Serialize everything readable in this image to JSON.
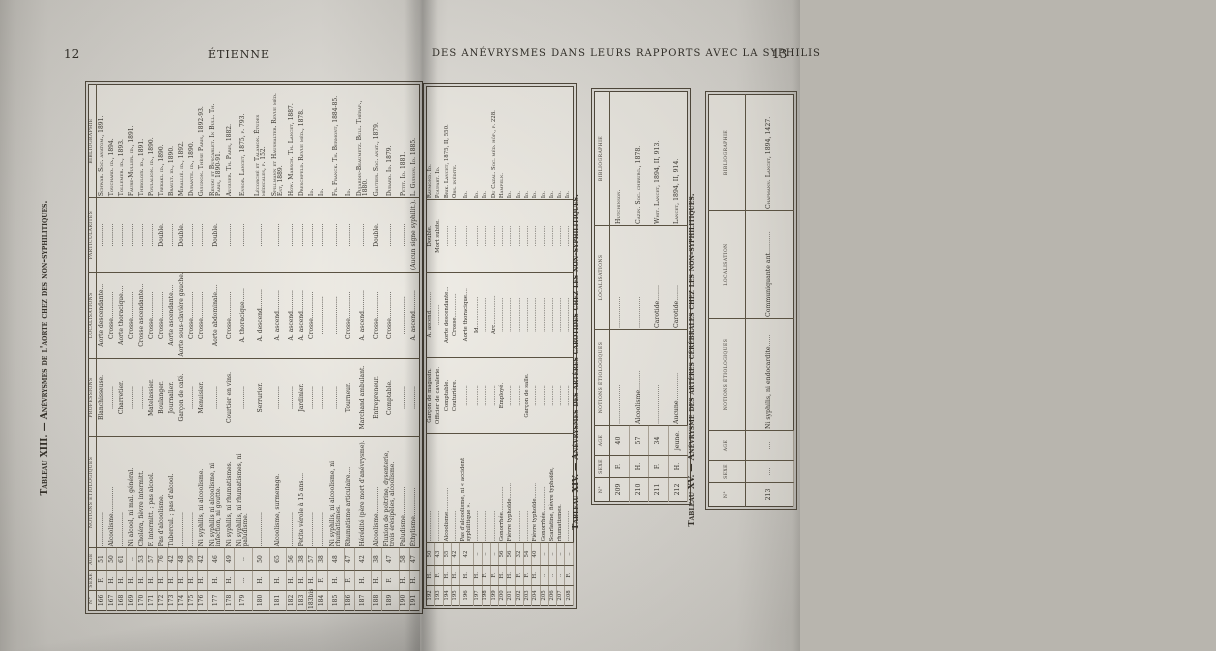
{
  "page_left": {
    "page_number": "12",
    "running_title": "ÉTIENNE"
  },
  "page_right": {
    "page_number": "13",
    "running_title": "DES ANÉVRYSMES DANS LEURS RAPPORTS AVEC LA SYPHILIS"
  },
  "table13": {
    "title": "Tableau XIII. — Anévrysmes de l'aorte chez des non-syphilitiques.",
    "headers": [
      "N°",
      "SEXE",
      "AGE",
      "NOTIONS ÉTIOLOGIQUES",
      "PROFESSIONS",
      "LOCALISATIONS",
      "PARTICULARITÉS",
      "BIBLIOGRAPHIE"
    ],
    "rows": [
      [
        "166",
        "F.",
        "51",
        "..................",
        "Blanchisseuse.",
        "Aorte descendante...",
        "............",
        "Schwab. Soc. anatom., 1891."
      ],
      [
        "167",
        "H.",
        "50",
        "Alcoolisme..............",
        "............",
        "Crosse..............",
        "............",
        "Touchard. id., 1894."
      ],
      [
        "168",
        "H.",
        "61",
        "..................",
        "Charretier.",
        "Aorte thoracique....",
        "............",
        "Tollemer. id., 1893."
      ],
      [
        "169",
        "H.",
        "..",
        "Ni alcool, ni mal. général.",
        "............",
        "Crosse..............",
        "............",
        "Faure-Muller. id., 1891."
      ],
      [
        "170",
        "H.",
        "53",
        "Choléra, fièvre intermitt.",
        "............",
        "Crosse ascendante...",
        "............",
        "Thiboloix. id., 1891."
      ],
      [
        "171",
        "H.",
        "57",
        "F. intermitt. ; pas alcool.",
        "Matelassier.",
        "Crosse..............",
        "............",
        "Poulalion. id., 1890."
      ],
      [
        "172",
        "H.",
        "76",
        "Pas d'alcoolisme.",
        "Boulanger.",
        "Crosse..............",
        "Double.",
        "Trekaki. id., 1890."
      ],
      [
        "173",
        "H.",
        "42",
        "Tubercul. ; pas d'alcool.",
        "Journalier.",
        "Aorte ascendante....",
        "............",
        "Brault. id., 1890."
      ],
      [
        "174",
        "H.",
        "48",
        "..................",
        "Garçon de café.",
        "Aorte sous-clavière gauche.",
        "Double.",
        "Mirallié. id., 1892."
      ],
      [
        "175",
        "H.",
        "59",
        "..................",
        "............",
        "Crosse..............",
        "............",
        "Durante. id., 1890."
      ],
      [
        "176",
        "H.",
        "42",
        "Ni syphilis, ni alcoolisme.",
        "Menuisier.",
        "Crosse..............",
        "............",
        "Guignon. Thèse Paris, 1892-93."
      ],
      [
        "177",
        "H.",
        "46",
        "Ni syphilis ni alcoolisme, ni infection, ni goutte.",
        "............",
        "Aorte abdominale....",
        "Double.",
        "Rendu et Buscarlet. In Bull. Th. Paris, 1890-91."
      ],
      [
        "178",
        "H.",
        "49",
        "Ni syphilis, ni rhumatismes.",
        "Courtier en vins.",
        "Crosse..............",
        "............",
        "Auguier. Th. Paris, 1882."
      ],
      [
        "179",
        "...",
        "..",
        "Ni syphilis, ni rhumatismes, ni paludisme.",
        "............",
        "A. thoracique.......",
        "............",
        "Ensor. Lancet, 1875, p. 793."
      ],
      [
        "180",
        "H.",
        "50",
        "..................",
        "Serrurier.",
        "A. descend..........",
        "............",
        "Lécorché et Talamon. Études médicales, p. 152."
      ],
      [
        "181",
        "H.",
        "65",
        "Alcoolisme, surmenage.",
        "............",
        "A. ascend...........",
        "............",
        "Spillmann et Haushalter. Revue méd. Est, 1889."
      ],
      [
        "182",
        "H.",
        "56",
        "..................",
        "............",
        "A. ascend...........",
        "............",
        "How. Marsch. Th. Lancet, 1887."
      ],
      [
        "183",
        "H.",
        "38",
        "Petite vérole à 15 ans....",
        "Jardinier.",
        "A. ascend...........",
        "............",
        "Dreschfeld. Revue méd., 1878."
      ],
      [
        "183bis",
        "H.",
        "57",
        "..................",
        "............",
        "Crosse..............",
        "............",
        "Id."
      ],
      [
        "184",
        "F.",
        "38",
        "..................",
        "............",
        "....................",
        "............",
        "Id."
      ],
      [
        "185",
        "H.",
        "48",
        "Ni syphilis, ni alcoolisme, ni rhumatismes.",
        "............",
        "....................",
        "............",
        "Fr. Franck. Th. Bermont, 1884-85."
      ],
      [
        "186",
        "F.",
        "47",
        "Rhumatisme articulaire....",
        "Tourneur.",
        "Crosse..............",
        "............",
        "Id."
      ],
      [
        "187",
        "H.",
        "42",
        "Hérédité (père mort d'anévrysme).",
        "Marchand ambulant.",
        "A. ascend...........",
        "............",
        "Dujardin-Beaumetz. Bull. Thérap., 1880."
      ],
      [
        "188",
        "H.",
        "38",
        "Alcoolisme..............",
        "Entrepreneur.",
        "Crosse..............",
        "Double.",
        "Gautier. Soc. anat., 1879."
      ],
      [
        "189",
        "F.",
        "47",
        "Fluxion de poitrine, dysenterie, trois érésipèles, alcoolisme.",
        "Comptable.",
        "Crosse..............",
        "............",
        "Dubard. Id. 1879."
      ],
      [
        "190",
        "H.",
        "58",
        "Paludisme...............",
        "............",
        "....................",
        "............",
        "Petit. Id. 1881."
      ],
      [
        "191",
        "H.",
        "47",
        "Éthylisme...............",
        "............",
        "A. ascend...........",
        "(Aucun signe syphilit.).",
        "L. Guinon. Id. 1885."
      ]
    ],
    "rows_continued": [
      [
        "192",
        "H.",
        "50",
        "..................",
        "Garçon de magasin.",
        "A. ascend...........",
        "Double.",
        "Raymond. Id."
      ],
      [
        "193",
        "F.",
        "43",
        "..................",
        "Officier de cavalerie.",
        "............",
        "Mort subite.",
        "Poupart. Id."
      ],
      [
        "194",
        "H.",
        "55",
        "Alcoolisme..............",
        "Comptable.",
        "Aorte descendante...",
        "............",
        "Brik. Lancet, 1875, II, 550."
      ],
      [
        "195",
        "H.",
        "42",
        "..................",
        "Couturière.",
        "Crosse..............",
        "............",
        "Obs. inédite."
      ],
      [
        "196",
        "H.",
        "42",
        "Pas d'alcoolisme, ni « accident syphilitique ».",
        "............",
        "Aorte thoracique....",
        "............",
        "Id."
      ],
      [
        "197",
        "H.",
        "..",
        "..................",
        "............",
        "Id..................",
        "............",
        "Id."
      ],
      [
        "198",
        "F.",
        "..",
        "..................",
        "............",
        "....................",
        "............",
        "Id."
      ],
      [
        "199",
        "F.",
        "..",
        "..................",
        "............",
        "Arc.................",
        "............",
        "Du Cazal. Soc. méd. hôp., p. 228."
      ],
      [
        "200",
        "H.",
        "56",
        "Gonorrhée...............",
        "Employé.",
        "....................",
        "............",
        "Hampeln."
      ],
      [
        "201",
        "H.",
        "56",
        "Fièvre typhoïde.........",
        "............",
        "....................",
        "............",
        "Id."
      ],
      [
        "202",
        "F.",
        "32",
        "..................",
        "............",
        "....................",
        "............",
        "Id."
      ],
      [
        "203",
        "F.",
        "54",
        "..................",
        "Garçon de salle.",
        "....................",
        "............",
        "Id."
      ],
      [
        "204",
        "H.",
        "40",
        "Fièvre typhoïde.........",
        "............",
        "....................",
        "............",
        "Id."
      ],
      [
        "205",
        "..",
        "..",
        "Gonorrhée...............",
        "............",
        "....................",
        "............",
        "Id."
      ],
      [
        "206",
        "..",
        "..",
        "Scarlatine, fièvre typhoïde,",
        "............",
        "....................",
        "............",
        "Id."
      ],
      [
        "207",
        "..",
        "..",
        "rhumatismes.",
        "............",
        "....................",
        "............",
        "Id."
      ],
      [
        "208",
        "F.",
        "..",
        "..................",
        "............",
        "....................",
        "............",
        "Id."
      ]
    ]
  },
  "table14": {
    "title": "Tableau XIV. — Anévrysmes des artères carotides chez les non-syphilitiques.",
    "headers": [
      "N°",
      "SEXE",
      "AGE",
      "NOTIONS ÉTIOLOGIQUES",
      "LOCALISATIONS",
      "BIBLIOGRAPHIE"
    ],
    "rows": [
      [
        "209",
        "F.",
        "40",
        "....................",
        "................",
        "Hutchinson."
      ],
      [
        "210",
        "H.",
        "57",
        "Alcoolisme..........",
        "................",
        "Cazin. Soc. chirurg., 1878."
      ],
      [
        "211",
        "F.",
        "34",
        "....................",
        "Carotide........",
        "Whit. Lancet, 1894, II, 913."
      ],
      [
        "212",
        "H.",
        "jeune.",
        "Aucune..............",
        "Carotide........",
        "Lancet, 1894, II, 914."
      ]
    ]
  },
  "table15": {
    "title": "Tableau XV. — Anévrysme des artères cérébrales chez les non-syphilitiques.",
    "headers": [
      "N°",
      "SEXE",
      "AGE",
      "NOTIONS ÉTIOLOGIQUES",
      "LOCALISATION",
      "BIBLIOGRAPHIE"
    ],
    "rows": [
      [
        "213",
        "....",
        "....",
        "Ni syphilis, ni endocardite......",
        "Communiquante ant...........",
        "Chapmann. Lancet, 1894, 1427."
      ]
    ]
  }
}
